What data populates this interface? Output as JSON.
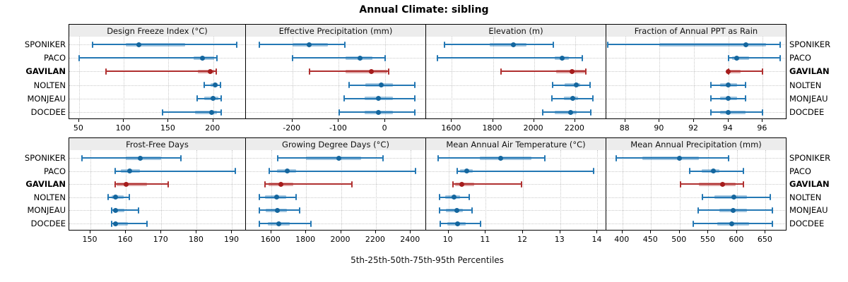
{
  "title": "Annual Climate: sibling",
  "xlabel": "5th-25th-50th-75th-95th Percentiles",
  "colors": {
    "normal_line": "#2478b4",
    "normal_dot": "#14669e",
    "normal_band": "rgba(36,120,180,0.42)",
    "highlight_line": "#b03030",
    "highlight_dot": "#a51c1c",
    "highlight_band": "rgba(176,48,48,0.42)",
    "strip_bg": "#ececec",
    "grid": "#c9c9c9",
    "border": "#000000"
  },
  "chart_data": {
    "type": "dotplot-intervals",
    "note": "each series value list is [5th,25th,50th,75th,95th] percentiles",
    "percentiles": [
      "5th",
      "25th",
      "50th",
      "75th",
      "95th"
    ],
    "stations": [
      "SPONIKER",
      "PACO",
      "GAVILAN",
      "NOLTEN",
      "MONJEAU",
      "DOCDEE"
    ],
    "highlight_station": "GAVILAN",
    "panels": [
      {
        "title": "Design Freeze Index (°C)",
        "row": 0,
        "col": 0,
        "ticks": [
          50,
          100,
          150,
          200
        ],
        "xlim": [
          39,
          235
        ],
        "values": {
          "SPONIKER": [
            65,
            102,
            117,
            169,
            226
          ],
          "PACO": [
            50,
            178,
            188,
            201,
            204
          ],
          "GAVILAN": [
            80,
            183,
            197,
            201,
            203
          ],
          "NOLTEN": [
            190,
            197,
            202,
            205,
            208
          ],
          "MONJEAU": [
            182,
            190,
            200,
            206,
            209
          ],
          "DOCDEE": [
            143,
            180,
            198,
            204,
            209
          ]
        }
      },
      {
        "title": "Effective Precipitation (mm)",
        "row": 0,
        "col": 1,
        "ticks": [
          -200,
          -100,
          0
        ],
        "xlim": [
          -300,
          85
        ],
        "values": {
          "SPONIKER": [
            -271,
            -200,
            -164,
            -124,
            -87
          ],
          "PACO": [
            -200,
            -86,
            -55,
            -28,
            0
          ],
          "GAVILAN": [
            -163,
            -86,
            -30,
            4,
            7
          ],
          "NOLTEN": [
            -78,
            -43,
            -9,
            17,
            63
          ],
          "MONJEAU": [
            -89,
            -45,
            -14,
            16,
            64
          ],
          "DOCDEE": [
            -99,
            -45,
            -15,
            17,
            64
          ]
        }
      },
      {
        "title": "Elevation (m)",
        "row": 0,
        "col": 2,
        "ticks": [
          1600,
          1800,
          2000,
          2200
        ],
        "xlim": [
          1475,
          2345
        ],
        "values": {
          "SPONIKER": [
            1565,
            1785,
            1900,
            1965,
            2095
          ],
          "PACO": [
            1530,
            2100,
            2136,
            2170,
            2236
          ],
          "GAVILAN": [
            1840,
            2108,
            2184,
            2248,
            2253
          ],
          "NOLTEN": [
            2090,
            2148,
            2207,
            2225,
            2272
          ],
          "MONJEAU": [
            2087,
            2144,
            2190,
            2213,
            2287
          ],
          "DOCDEE": [
            2043,
            2102,
            2179,
            2207,
            2275
          ]
        }
      },
      {
        "title": "Fraction of Annual PPT as Rain",
        "row": 0,
        "col": 3,
        "ticks": [
          88,
          90,
          92,
          94,
          96
        ],
        "xlim": [
          86.9,
          97.3
        ],
        "values": {
          "SPONIKER": [
            87,
            90,
            95,
            96.2,
            97
          ],
          "PACO": [
            94,
            94.2,
            94.5,
            95.2,
            97
          ],
          "GAVILAN": [
            94,
            94,
            94,
            94.7,
            96
          ],
          "NOLTEN": [
            93,
            93.5,
            94,
            94.5,
            95
          ],
          "MONJEAU": [
            93,
            93.5,
            94,
            94.5,
            95
          ],
          "DOCDEE": [
            93,
            93.5,
            94,
            95,
            96
          ]
        }
      },
      {
        "title": "Frost-Free Days",
        "row": 1,
        "col": 0,
        "ticks": [
          150,
          160,
          170,
          180,
          190
        ],
        "xlim": [
          144,
          193.5
        ],
        "values": {
          "SPONIKER": [
            147.5,
            160,
            164,
            170,
            175.5
          ],
          "PACO": [
            157,
            158.5,
            161,
            164,
            191
          ],
          "GAVILAN": [
            157,
            157.3,
            160,
            166,
            172
          ],
          "NOLTEN": [
            155,
            156,
            157,
            159.3,
            161
          ],
          "MONJEAU": [
            156,
            156.3,
            157,
            159.5,
            163.5
          ],
          "DOCDEE": [
            156,
            156.3,
            157,
            160.5,
            166
          ]
        }
      },
      {
        "title": "Growing Degree Days (°C)",
        "row": 1,
        "col": 1,
        "ticks": [
          1600,
          1800,
          2000,
          2200,
          2400
        ],
        "xlim": [
          1455,
          2480
        ],
        "values": {
          "SPONIKER": [
            1638,
            1800,
            1987,
            2115,
            2240
          ],
          "PACO": [
            1587,
            1634,
            1694,
            1741,
            2427
          ],
          "GAVILAN": [
            1566,
            1584,
            1654,
            1725,
            2064
          ],
          "NOLTEN": [
            1533,
            1566,
            1630,
            1687,
            1741
          ],
          "MONJEAU": [
            1533,
            1570,
            1635,
            1691,
            1764
          ],
          "DOCDEE": [
            1533,
            1580,
            1644,
            1705,
            1826
          ]
        }
      },
      {
        "title": "Mean Annual Air Temperature (°C)",
        "row": 1,
        "col": 2,
        "ticks": [
          10,
          11,
          12,
          13,
          14
        ],
        "xlim": [
          9.4,
          14.2
        ],
        "values": {
          "SPONIKER": [
            9.73,
            10.84,
            11.4,
            12.22,
            12.58
          ],
          "PACO": [
            10.24,
            10.31,
            10.49,
            10.66,
            13.89
          ],
          "GAVILAN": [
            10.12,
            10.18,
            10.36,
            10.69,
            11.97
          ],
          "NOLTEN": [
            9.76,
            9.91,
            10.14,
            10.31,
            10.55
          ],
          "MONJEAU": [
            9.76,
            9.94,
            10.22,
            10.39,
            10.63
          ],
          "DOCDEE": [
            9.78,
            9.97,
            10.24,
            10.47,
            10.86
          ]
        }
      },
      {
        "title": "Mean Annual Precipitation (mm)",
        "row": 1,
        "col": 3,
        "ticks": [
          400,
          450,
          500,
          550,
          600,
          650
        ],
        "xlim": [
          372,
          684
        ],
        "values": {
          "SPONIKER": [
            389,
            435,
            500,
            533,
            585
          ],
          "PACO": [
            517,
            538,
            559,
            569,
            611
          ],
          "GAVILAN": [
            501,
            533,
            575,
            598,
            611
          ],
          "NOLTEN": [
            540,
            561,
            595,
            618,
            658
          ],
          "MONJEAU": [
            532,
            569,
            593,
            618,
            662
          ],
          "DOCDEE": [
            524,
            566,
            591,
            621,
            662
          ]
        }
      }
    ]
  }
}
